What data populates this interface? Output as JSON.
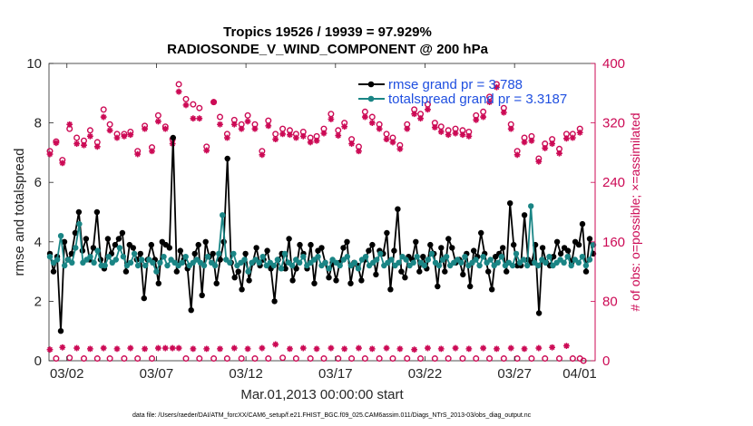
{
  "chart_data": {
    "type": "line",
    "title_line1": "Tropics 19526 / 19939 = 97.929%",
    "title_line2": "RADIOSONDE_V_WIND_COMPONENT @ 200 hPa",
    "xlabel": "Mar.01,2013 00:00:00 start",
    "ylabel_left": "rmse and totalspread",
    "ylabel_right": "# of obs: o=possible; ×=assimilated",
    "footer": "data file: /Users/raeder/DAI/ATM_forcXX/CAM6_setup/f.e21.FHIST_BGC.f09_025.CAM6assim.011/Diags_NTrS_2013-03/obs_diag_output.nc",
    "xlim": [
      0,
      30.5
    ],
    "ylim_left": [
      0,
      10
    ],
    "ylim_right": [
      0,
      400
    ],
    "x_ticks": [
      {
        "x": 1,
        "label": "03/02"
      },
      {
        "x": 6,
        "label": "03/07"
      },
      {
        "x": 11,
        "label": "03/12"
      },
      {
        "x": 16,
        "label": "03/17"
      },
      {
        "x": 21,
        "label": "03/22"
      },
      {
        "x": 26,
        "label": "03/27"
      },
      {
        "x": 31,
        "label": "04/01"
      }
    ],
    "y_ticks_left": [
      "0",
      "2",
      "4",
      "6",
      "8",
      "10"
    ],
    "y_ticks_right": [
      "0",
      "80",
      "160",
      "240",
      "320",
      "400"
    ],
    "series": [
      {
        "name": "rmse",
        "legend": "rmse grand pr = 3.788",
        "color": "#000000",
        "values": [
          3.6,
          3.0,
          3.5,
          1.0,
          4.0,
          3.4,
          3.6,
          4.3,
          5.0,
          3.7,
          4.1,
          3.4,
          3.8,
          5.0,
          3.4,
          3.1,
          4.1,
          3.6,
          3.9,
          4.1,
          4.3,
          3.0,
          3.9,
          3.8,
          3.4,
          3.6,
          2.1,
          3.4,
          3.9,
          3.4,
          2.6,
          4.0,
          3.9,
          3.8,
          7.5,
          3.0,
          3.7,
          3.4,
          3.1,
          1.7,
          3.6,
          3.9,
          2.2,
          4.0,
          3.5,
          3.6,
          2.6,
          3.4,
          4.0,
          6.8,
          3.3,
          2.8,
          3.0,
          2.4,
          3.6,
          2.7,
          3.3,
          3.8,
          3.2,
          3.4,
          3.7,
          3.1,
          2.0,
          3.4,
          3.6,
          3.1,
          4.1,
          2.7,
          3.1,
          3.9,
          3.6,
          3.1,
          3.9,
          2.6,
          3.7,
          3.8,
          3.3,
          2.8,
          3.3,
          2.7,
          3.3,
          3.8,
          4.0,
          2.6,
          3.3,
          3.2,
          2.7,
          3.4,
          3.7,
          3.9,
          2.9,
          3.7,
          3.6,
          4.3,
          2.4,
          3.7,
          5.1,
          3.0,
          2.8,
          3.5,
          3.4,
          4.0,
          3.0,
          3.5,
          3.1,
          3.9,
          3.6,
          2.5,
          3.8,
          3.0,
          4.1,
          3.8,
          3.3,
          3.4,
          2.9,
          3.6,
          2.5,
          3.7,
          3.5,
          4.3,
          3.6,
          3.0,
          2.4,
          3.5,
          3.6,
          3.8,
          3.0,
          5.3,
          3.9,
          3.2,
          3.2,
          4.9,
          3.4,
          3.3,
          3.9,
          1.6,
          3.8,
          3.3,
          3.2,
          3.5,
          4.0,
          3.6,
          3.8,
          3.7,
          3.3,
          4.0,
          3.9,
          4.6,
          3.0,
          4.1,
          3.6
        ]
      },
      {
        "name": "totalspread",
        "legend": "totalspread grand pr = 3.3187",
        "color": "#1a8585",
        "values": [
          3.5,
          3.3,
          3.4,
          4.2,
          3.2,
          3.4,
          3.3,
          3.8,
          4.6,
          3.3,
          3.4,
          3.5,
          3.3,
          3.7,
          3.2,
          3.2,
          3.5,
          3.3,
          3.4,
          3.8,
          3.5,
          3.2,
          3.3,
          3.6,
          3.2,
          3.4,
          3.2,
          3.4,
          3.3,
          3.0,
          3.3,
          3.5,
          3.2,
          3.4,
          3.3,
          3.2,
          3.3,
          3.5,
          3.2,
          3.3,
          3.4,
          3.3,
          3.2,
          3.5,
          3.3,
          3.2,
          3.6,
          4.9,
          3.4,
          3.3,
          3.6,
          3.2,
          3.3,
          3.4,
          3.0,
          3.3,
          3.4,
          3.3,
          3.5,
          3.2,
          3.3,
          3.2,
          3.4,
          3.1,
          3.6,
          3.3,
          3.2,
          3.4,
          3.3,
          3.5,
          3.2,
          3.3,
          3.4,
          3.5,
          3.2,
          3.3,
          3.1,
          3.4,
          3.3,
          3.2,
          3.4,
          3.5,
          3.2,
          3.3,
          3.1,
          3.4,
          3.5,
          3.2,
          3.3,
          3.4,
          3.6,
          3.2,
          3.3,
          3.4,
          3.2,
          3.3,
          3.5,
          3.4,
          3.2,
          3.3,
          3.5,
          3.3,
          3.2,
          3.4,
          3.6,
          3.3,
          3.2,
          3.4,
          3.5,
          3.2,
          3.3,
          3.4,
          3.3,
          3.5,
          3.2,
          3.3,
          3.4,
          3.2,
          3.5,
          3.3,
          3.4,
          3.2,
          3.3,
          3.5,
          3.2,
          3.3,
          3.2,
          3.6,
          3.3,
          3.4,
          3.2,
          5.2,
          3.3,
          3.2,
          3.4,
          3.3,
          3.5,
          3.2,
          3.3,
          3.4,
          3.3,
          3.5,
          3.2,
          3.4,
          3.3,
          3.5,
          3.2,
          3.4,
          3.9
        ]
      }
    ],
    "obs_possible": [
      {
        "x": 0.05,
        "v": 282
      },
      {
        "x": 0.4,
        "v": 295
      },
      {
        "x": 0.75,
        "v": 270
      },
      {
        "x": 1.15,
        "v": 312
      },
      {
        "x": 1.55,
        "v": 300
      },
      {
        "x": 1.95,
        "v": 296
      },
      {
        "x": 2.3,
        "v": 310
      },
      {
        "x": 2.7,
        "v": 294
      },
      {
        "x": 3.05,
        "v": 338
      },
      {
        "x": 3.4,
        "v": 318
      },
      {
        "x": 3.8,
        "v": 305
      },
      {
        "x": 4.2,
        "v": 305
      },
      {
        "x": 4.55,
        "v": 308
      },
      {
        "x": 4.95,
        "v": 282
      },
      {
        "x": 5.35,
        "v": 316
      },
      {
        "x": 5.75,
        "v": 287
      },
      {
        "x": 6.1,
        "v": 330
      },
      {
        "x": 6.5,
        "v": 315
      },
      {
        "x": 6.9,
        "v": 298
      },
      {
        "x": 7.25,
        "v": 372
      },
      {
        "x": 7.65,
        "v": 352
      },
      {
        "x": 8.05,
        "v": 345
      },
      {
        "x": 8.4,
        "v": 340
      },
      {
        "x": 8.8,
        "v": 288
      },
      {
        "x": 9.2,
        "v": 348
      },
      {
        "x": 9.55,
        "v": 328
      },
      {
        "x": 9.95,
        "v": 305
      },
      {
        "x": 10.35,
        "v": 324
      },
      {
        "x": 10.75,
        "v": 318
      },
      {
        "x": 11.1,
        "v": 330
      },
      {
        "x": 11.5,
        "v": 318
      },
      {
        "x": 11.9,
        "v": 282
      },
      {
        "x": 12.25,
        "v": 323
      },
      {
        "x": 12.65,
        "v": 305
      },
      {
        "x": 13.05,
        "v": 312
      },
      {
        "x": 13.45,
        "v": 310
      },
      {
        "x": 13.8,
        "v": 305
      },
      {
        "x": 14.2,
        "v": 308
      },
      {
        "x": 14.6,
        "v": 300
      },
      {
        "x": 14.95,
        "v": 302
      },
      {
        "x": 15.35,
        "v": 312
      },
      {
        "x": 15.75,
        "v": 332
      },
      {
        "x": 16.15,
        "v": 310
      },
      {
        "x": 16.5,
        "v": 320
      },
      {
        "x": 16.9,
        "v": 298
      },
      {
        "x": 17.3,
        "v": 288
      },
      {
        "x": 17.65,
        "v": 335
      },
      {
        "x": 18.05,
        "v": 328
      },
      {
        "x": 18.45,
        "v": 318
      },
      {
        "x": 18.85,
        "v": 305
      },
      {
        "x": 19.2,
        "v": 300
      },
      {
        "x": 19.6,
        "v": 290
      },
      {
        "x": 20.0,
        "v": 318
      },
      {
        "x": 20.4,
        "v": 338
      },
      {
        "x": 20.75,
        "v": 332
      },
      {
        "x": 21.15,
        "v": 345
      },
      {
        "x": 21.55,
        "v": 320
      },
      {
        "x": 21.9,
        "v": 315
      },
      {
        "x": 22.3,
        "v": 310
      },
      {
        "x": 22.7,
        "v": 312
      },
      {
        "x": 23.1,
        "v": 310
      },
      {
        "x": 23.45,
        "v": 308
      },
      {
        "x": 23.85,
        "v": 330
      },
      {
        "x": 24.25,
        "v": 335
      },
      {
        "x": 24.6,
        "v": 355
      },
      {
        "x": 25.0,
        "v": 372
      },
      {
        "x": 25.4,
        "v": 340
      },
      {
        "x": 25.8,
        "v": 318
      },
      {
        "x": 26.15,
        "v": 282
      },
      {
        "x": 26.55,
        "v": 300
      },
      {
        "x": 26.95,
        "v": 302
      },
      {
        "x": 27.35,
        "v": 272
      },
      {
        "x": 27.7,
        "v": 292
      },
      {
        "x": 28.1,
        "v": 298
      },
      {
        "x": 28.5,
        "v": 285
      },
      {
        "x": 28.9,
        "v": 305
      },
      {
        "x": 29.25,
        "v": 305
      },
      {
        "x": 29.65,
        "v": 312
      }
    ],
    "obs_assimilated": [
      {
        "x": 0.05,
        "v": 278
      },
      {
        "x": 0.4,
        "v": 293
      },
      {
        "x": 0.75,
        "v": 266
      },
      {
        "x": 1.15,
        "v": 318
      },
      {
        "x": 1.55,
        "v": 292
      },
      {
        "x": 1.95,
        "v": 290
      },
      {
        "x": 2.3,
        "v": 302
      },
      {
        "x": 2.7,
        "v": 288
      },
      {
        "x": 3.05,
        "v": 328
      },
      {
        "x": 3.4,
        "v": 310
      },
      {
        "x": 3.8,
        "v": 300
      },
      {
        "x": 4.2,
        "v": 302
      },
      {
        "x": 4.55,
        "v": 304
      },
      {
        "x": 4.95,
        "v": 278
      },
      {
        "x": 5.35,
        "v": 312
      },
      {
        "x": 5.75,
        "v": 282
      },
      {
        "x": 6.1,
        "v": 322
      },
      {
        "x": 6.5,
        "v": 312
      },
      {
        "x": 6.9,
        "v": 292
      },
      {
        "x": 7.25,
        "v": 362
      },
      {
        "x": 7.65,
        "v": 344
      },
      {
        "x": 8.05,
        "v": 326
      },
      {
        "x": 8.4,
        "v": 326
      },
      {
        "x": 8.8,
        "v": 283
      },
      {
        "x": 9.2,
        "v": 348
      },
      {
        "x": 9.55,
        "v": 318
      },
      {
        "x": 9.95,
        "v": 300
      },
      {
        "x": 10.35,
        "v": 318
      },
      {
        "x": 10.75,
        "v": 312
      },
      {
        "x": 11.1,
        "v": 322
      },
      {
        "x": 11.5,
        "v": 312
      },
      {
        "x": 11.9,
        "v": 277
      },
      {
        "x": 12.25,
        "v": 316
      },
      {
        "x": 12.65,
        "v": 298
      },
      {
        "x": 13.05,
        "v": 305
      },
      {
        "x": 13.45,
        "v": 304
      },
      {
        "x": 13.8,
        "v": 300
      },
      {
        "x": 14.2,
        "v": 302
      },
      {
        "x": 14.6,
        "v": 294
      },
      {
        "x": 14.95,
        "v": 296
      },
      {
        "x": 15.35,
        "v": 306
      },
      {
        "x": 15.75,
        "v": 325
      },
      {
        "x": 16.15,
        "v": 303
      },
      {
        "x": 16.5,
        "v": 315
      },
      {
        "x": 16.9,
        "v": 292
      },
      {
        "x": 17.3,
        "v": 282
      },
      {
        "x": 17.65,
        "v": 328
      },
      {
        "x": 18.05,
        "v": 320
      },
      {
        "x": 18.45,
        "v": 312
      },
      {
        "x": 18.85,
        "v": 298
      },
      {
        "x": 19.2,
        "v": 294
      },
      {
        "x": 19.6,
        "v": 285
      },
      {
        "x": 20.0,
        "v": 312
      },
      {
        "x": 20.4,
        "v": 332
      },
      {
        "x": 20.75,
        "v": 326
      },
      {
        "x": 21.15,
        "v": 338
      },
      {
        "x": 21.55,
        "v": 314
      },
      {
        "x": 21.9,
        "v": 308
      },
      {
        "x": 22.3,
        "v": 304
      },
      {
        "x": 22.7,
        "v": 306
      },
      {
        "x": 23.1,
        "v": 304
      },
      {
        "x": 23.45,
        "v": 302
      },
      {
        "x": 23.85,
        "v": 324
      },
      {
        "x": 24.25,
        "v": 328
      },
      {
        "x": 24.6,
        "v": 348
      },
      {
        "x": 25.0,
        "v": 368
      },
      {
        "x": 25.4,
        "v": 334
      },
      {
        "x": 25.8,
        "v": 312
      },
      {
        "x": 26.15,
        "v": 277
      },
      {
        "x": 26.55,
        "v": 294
      },
      {
        "x": 26.95,
        "v": 296
      },
      {
        "x": 27.35,
        "v": 268
      },
      {
        "x": 27.7,
        "v": 286
      },
      {
        "x": 28.1,
        "v": 292
      },
      {
        "x": 28.5,
        "v": 279
      },
      {
        "x": 28.9,
        "v": 299
      },
      {
        "x": 29.25,
        "v": 300
      },
      {
        "x": 29.65,
        "v": 307
      }
    ],
    "obs_bottom_possible": [
      {
        "x": 0.05,
        "v": 15
      },
      {
        "x": 0.4,
        "v": 3
      },
      {
        "x": 0.75,
        "v": 18
      },
      {
        "x": 1.15,
        "v": 4
      },
      {
        "x": 1.55,
        "v": 17
      },
      {
        "x": 1.95,
        "v": 3
      },
      {
        "x": 2.3,
        "v": 16
      },
      {
        "x": 2.7,
        "v": 3
      },
      {
        "x": 3.05,
        "v": 17
      },
      {
        "x": 3.4,
        "v": 3
      },
      {
        "x": 3.8,
        "v": 16
      },
      {
        "x": 4.2,
        "v": 3
      },
      {
        "x": 4.55,
        "v": 17
      },
      {
        "x": 4.95,
        "v": 3
      },
      {
        "x": 5.35,
        "v": 16
      },
      {
        "x": 5.75,
        "v": 3
      },
      {
        "x": 6.1,
        "v": 17
      },
      {
        "x": 6.5,
        "v": 17
      },
      {
        "x": 6.9,
        "v": 17
      },
      {
        "x": 7.25,
        "v": 17
      },
      {
        "x": 7.65,
        "v": 3
      },
      {
        "x": 8.05,
        "v": 16
      },
      {
        "x": 8.4,
        "v": 3
      },
      {
        "x": 8.8,
        "v": 16
      },
      {
        "x": 9.2,
        "v": 3
      },
      {
        "x": 9.55,
        "v": 16
      },
      {
        "x": 9.95,
        "v": 3
      },
      {
        "x": 10.35,
        "v": 17
      },
      {
        "x": 10.75,
        "v": 3
      },
      {
        "x": 11.1,
        "v": 16
      },
      {
        "x": 11.5,
        "v": 3
      },
      {
        "x": 11.9,
        "v": 17
      },
      {
        "x": 12.25,
        "v": 3
      },
      {
        "x": 12.65,
        "v": 22
      },
      {
        "x": 13.05,
        "v": 4
      },
      {
        "x": 13.45,
        "v": 16
      },
      {
        "x": 13.8,
        "v": 3
      },
      {
        "x": 14.2,
        "v": 17
      },
      {
        "x": 14.6,
        "v": 3
      },
      {
        "x": 14.95,
        "v": 16
      },
      {
        "x": 15.35,
        "v": 3
      },
      {
        "x": 15.75,
        "v": 17
      },
      {
        "x": 16.15,
        "v": 3
      },
      {
        "x": 16.5,
        "v": 16
      },
      {
        "x": 16.9,
        "v": 3
      },
      {
        "x": 17.3,
        "v": 17
      },
      {
        "x": 17.65,
        "v": 3
      },
      {
        "x": 18.05,
        "v": 16
      },
      {
        "x": 18.45,
        "v": 3
      },
      {
        "x": 18.85,
        "v": 17
      },
      {
        "x": 19.2,
        "v": 3
      },
      {
        "x": 19.6,
        "v": 16
      },
      {
        "x": 20.0,
        "v": 3
      },
      {
        "x": 20.4,
        "v": 15
      },
      {
        "x": 20.75,
        "v": 3
      },
      {
        "x": 21.15,
        "v": 17
      },
      {
        "x": 21.55,
        "v": 3
      },
      {
        "x": 21.9,
        "v": 16
      },
      {
        "x": 22.3,
        "v": 3
      },
      {
        "x": 22.7,
        "v": 17
      },
      {
        "x": 23.1,
        "v": 3
      },
      {
        "x": 23.45,
        "v": 16
      },
      {
        "x": 23.85,
        "v": 3
      },
      {
        "x": 24.25,
        "v": 17
      },
      {
        "x": 24.6,
        "v": 3
      },
      {
        "x": 25.0,
        "v": 16
      },
      {
        "x": 25.4,
        "v": 3
      },
      {
        "x": 25.8,
        "v": 17
      },
      {
        "x": 26.15,
        "v": 3
      },
      {
        "x": 26.55,
        "v": 16
      },
      {
        "x": 26.95,
        "v": 3
      },
      {
        "x": 27.35,
        "v": 17
      },
      {
        "x": 27.7,
        "v": 3
      },
      {
        "x": 28.1,
        "v": 18
      },
      {
        "x": 28.5,
        "v": 3
      },
      {
        "x": 28.9,
        "v": 20
      },
      {
        "x": 29.25,
        "v": 3
      },
      {
        "x": 29.65,
        "v": 3
      },
      {
        "x": 29.85,
        "v": 0
      }
    ],
    "colors": {
      "right_axis": "#cc0a55",
      "legend_text": "#1f4fe0",
      "rmse": "#000000",
      "totalspread": "#1a8585"
    }
  }
}
